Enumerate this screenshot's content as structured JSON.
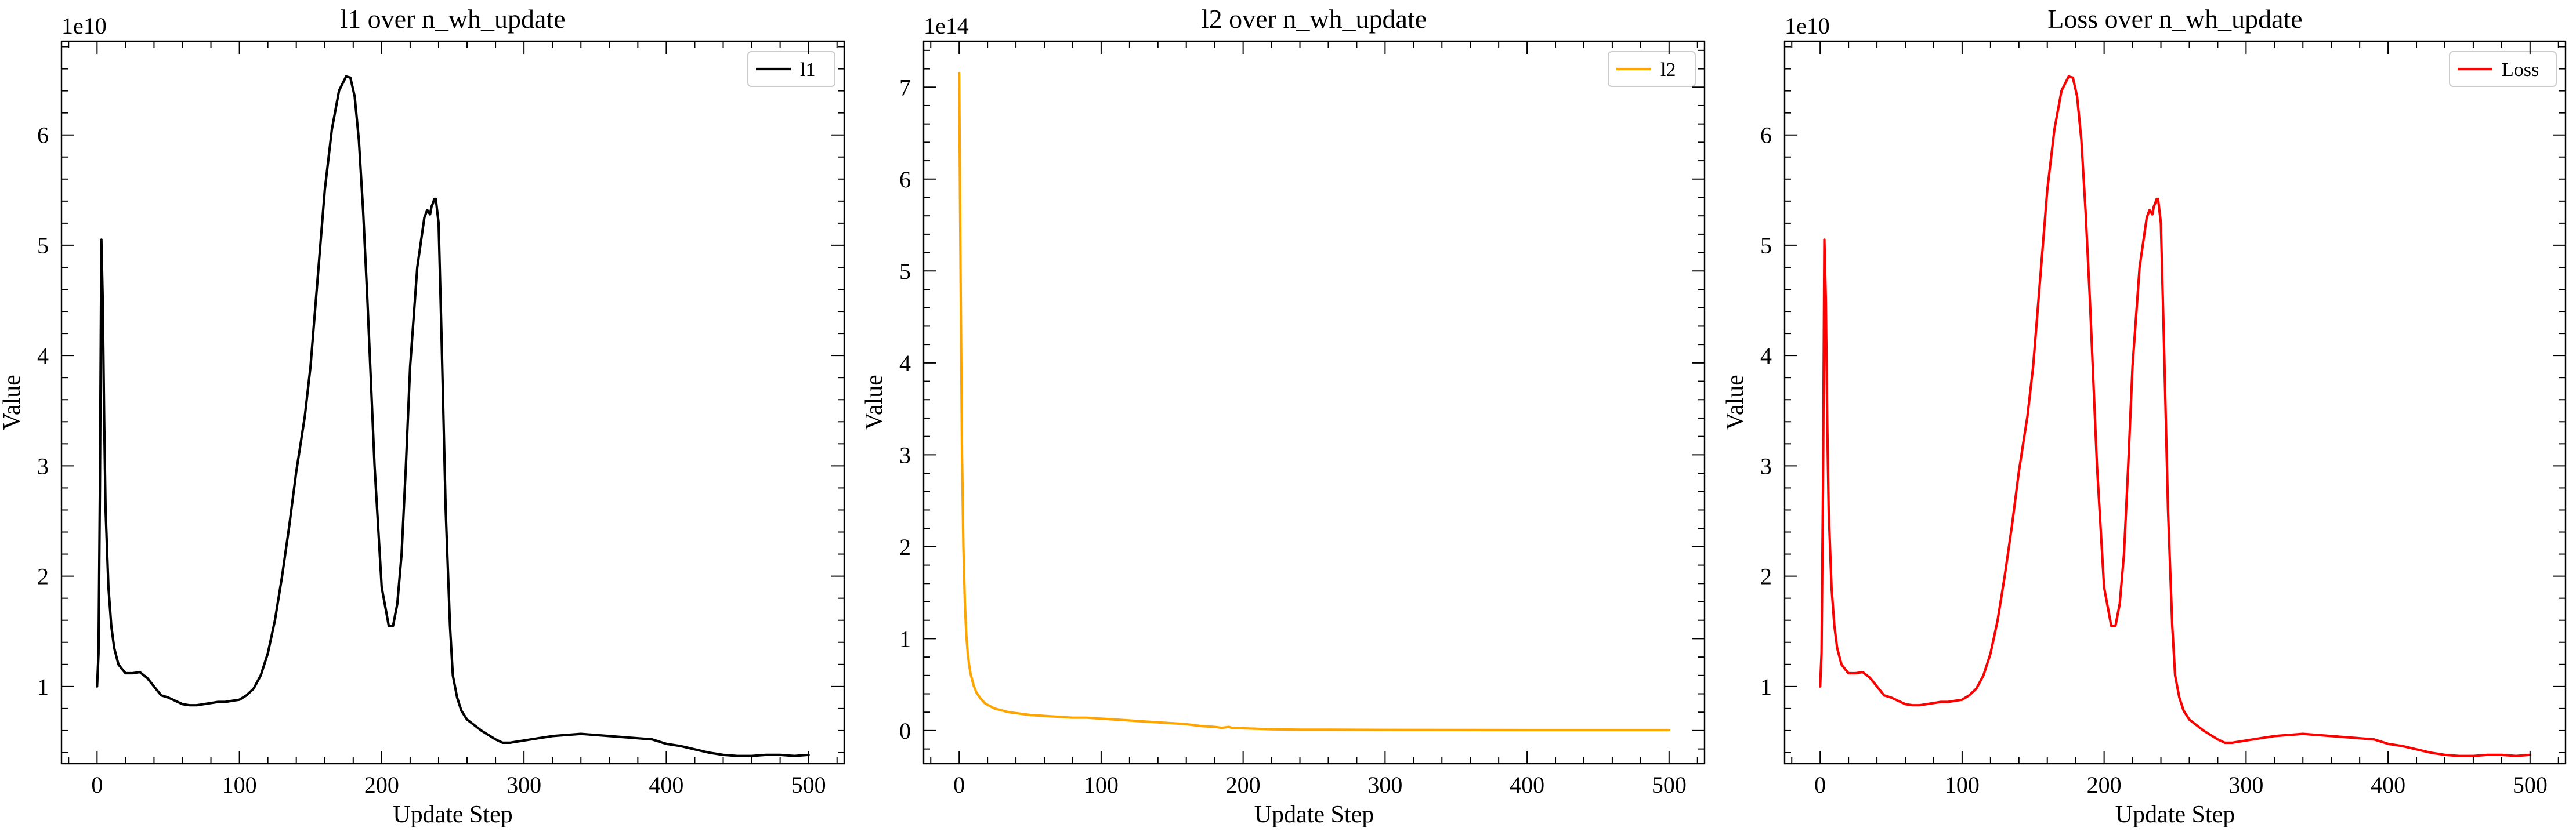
{
  "chart_data": [
    {
      "type": "line",
      "title": "l1 over n_wh_update",
      "xlabel": "Update Step",
      "ylabel": "Value",
      "y_scale_label": "1e10",
      "xlim": [
        -25,
        525
      ],
      "ylim": [
        0.3,
        6.85
      ],
      "x_ticks": [
        0,
        100,
        200,
        300,
        400,
        500
      ],
      "y_ticks": [
        1,
        2,
        3,
        4,
        5,
        6
      ],
      "legend_position": "top-right",
      "series": [
        {
          "name": "l1",
          "color": "#000000",
          "x": [
            0,
            1,
            2,
            3,
            4,
            5,
            6,
            8,
            10,
            12,
            15,
            18,
            20,
            25,
            30,
            35,
            40,
            45,
            50,
            55,
            60,
            65,
            70,
            75,
            80,
            85,
            90,
            95,
            100,
            105,
            110,
            115,
            120,
            125,
            130,
            135,
            140,
            143,
            146,
            150,
            155,
            160,
            165,
            170,
            175,
            178,
            181,
            184,
            187,
            190,
            195,
            200,
            205,
            208,
            211,
            214,
            217,
            220,
            225,
            230,
            232,
            234,
            235,
            236,
            237,
            238,
            240,
            242,
            245,
            248,
            250,
            253,
            256,
            260,
            265,
            270,
            275,
            280,
            285,
            290,
            300,
            310,
            320,
            330,
            340,
            350,
            360,
            370,
            380,
            390,
            400,
            410,
            420,
            430,
            440,
            450,
            460,
            470,
            480,
            490,
            500
          ],
          "values": [
            1.0,
            1.3,
            2.8,
            5.05,
            4.5,
            3.4,
            2.6,
            1.9,
            1.55,
            1.35,
            1.2,
            1.15,
            1.12,
            1.12,
            1.13,
            1.08,
            1.0,
            0.92,
            0.9,
            0.87,
            0.84,
            0.83,
            0.83,
            0.84,
            0.85,
            0.86,
            0.86,
            0.87,
            0.88,
            0.92,
            0.98,
            1.1,
            1.3,
            1.6,
            2.0,
            2.45,
            2.95,
            3.2,
            3.45,
            3.9,
            4.7,
            5.5,
            6.05,
            6.4,
            6.53,
            6.52,
            6.35,
            5.95,
            5.3,
            4.5,
            3.0,
            1.9,
            1.55,
            1.55,
            1.75,
            2.2,
            3.0,
            3.9,
            4.8,
            5.25,
            5.32,
            5.28,
            5.35,
            5.38,
            5.42,
            5.42,
            5.2,
            4.2,
            2.6,
            1.55,
            1.1,
            0.9,
            0.78,
            0.7,
            0.65,
            0.6,
            0.56,
            0.52,
            0.49,
            0.49,
            0.51,
            0.53,
            0.55,
            0.56,
            0.57,
            0.56,
            0.55,
            0.54,
            0.53,
            0.52,
            0.48,
            0.46,
            0.43,
            0.4,
            0.38,
            0.37,
            0.37,
            0.38,
            0.38,
            0.37,
            0.38
          ]
        }
      ]
    },
    {
      "type": "line",
      "title": "l2 over n_wh_update",
      "xlabel": "Update Step",
      "ylabel": "Value",
      "y_scale_label": "1e14",
      "xlim": [
        -25,
        525
      ],
      "ylim": [
        -0.36,
        7.5
      ],
      "x_ticks": [
        0,
        100,
        200,
        300,
        400,
        500
      ],
      "y_ticks": [
        0,
        1,
        2,
        3,
        4,
        5,
        6,
        7
      ],
      "legend_position": "top-right",
      "series": [
        {
          "name": "l2",
          "color": "#ffa500",
          "x": [
            0,
            1,
            2,
            3,
            4,
            5,
            6,
            7,
            8,
            10,
            12,
            15,
            18,
            20,
            25,
            30,
            35,
            40,
            50,
            60,
            70,
            80,
            90,
            100,
            110,
            120,
            130,
            140,
            150,
            160,
            170,
            180,
            185,
            190,
            192,
            195,
            200,
            210,
            220,
            230,
            240,
            260,
            300,
            350,
            400,
            450,
            500
          ],
          "values": [
            7.15,
            5.0,
            3.0,
            2.0,
            1.4,
            1.05,
            0.85,
            0.72,
            0.62,
            0.5,
            0.42,
            0.35,
            0.3,
            0.28,
            0.24,
            0.22,
            0.2,
            0.19,
            0.17,
            0.16,
            0.15,
            0.14,
            0.14,
            0.13,
            0.12,
            0.11,
            0.1,
            0.09,
            0.08,
            0.07,
            0.05,
            0.04,
            0.03,
            0.04,
            0.03,
            0.03,
            0.025,
            0.02,
            0.015,
            0.012,
            0.01,
            0.01,
            0.008,
            0.007,
            0.006,
            0.006,
            0.006
          ]
        }
      ]
    },
    {
      "type": "line",
      "title": "Loss over n_wh_update",
      "xlabel": "Update Step",
      "ylabel": "Value",
      "y_scale_label": "1e10",
      "xlim": [
        -25,
        525
      ],
      "ylim": [
        0.3,
        6.85
      ],
      "x_ticks": [
        0,
        100,
        200,
        300,
        400,
        500
      ],
      "y_ticks": [
        1,
        2,
        3,
        4,
        5,
        6
      ],
      "legend_position": "top-right",
      "series": [
        {
          "name": "Loss",
          "color": "#ff0000",
          "x": [
            0,
            1,
            2,
            3,
            4,
            5,
            6,
            8,
            10,
            12,
            15,
            18,
            20,
            25,
            30,
            35,
            40,
            45,
            50,
            55,
            60,
            65,
            70,
            75,
            80,
            85,
            90,
            95,
            100,
            105,
            110,
            115,
            120,
            125,
            130,
            135,
            140,
            143,
            146,
            150,
            155,
            160,
            165,
            170,
            175,
            178,
            181,
            184,
            187,
            190,
            195,
            200,
            205,
            208,
            211,
            214,
            217,
            220,
            225,
            230,
            232,
            234,
            235,
            236,
            237,
            238,
            240,
            242,
            245,
            248,
            250,
            253,
            256,
            260,
            265,
            270,
            275,
            280,
            285,
            290,
            300,
            310,
            320,
            330,
            340,
            350,
            360,
            370,
            380,
            390,
            400,
            410,
            420,
            430,
            440,
            450,
            460,
            470,
            480,
            490,
            500
          ],
          "values": [
            1.0,
            1.3,
            2.8,
            5.05,
            4.5,
            3.4,
            2.6,
            1.9,
            1.55,
            1.35,
            1.2,
            1.15,
            1.12,
            1.12,
            1.13,
            1.08,
            1.0,
            0.92,
            0.9,
            0.87,
            0.84,
            0.83,
            0.83,
            0.84,
            0.85,
            0.86,
            0.86,
            0.87,
            0.88,
            0.92,
            0.98,
            1.1,
            1.3,
            1.6,
            2.0,
            2.45,
            2.95,
            3.2,
            3.45,
            3.9,
            4.7,
            5.5,
            6.05,
            6.4,
            6.53,
            6.52,
            6.35,
            5.95,
            5.3,
            4.5,
            3.0,
            1.9,
            1.55,
            1.55,
            1.75,
            2.2,
            3.0,
            3.9,
            4.8,
            5.25,
            5.32,
            5.28,
            5.35,
            5.38,
            5.42,
            5.42,
            5.2,
            4.2,
            2.6,
            1.55,
            1.1,
            0.9,
            0.78,
            0.7,
            0.65,
            0.6,
            0.56,
            0.52,
            0.49,
            0.49,
            0.51,
            0.53,
            0.55,
            0.56,
            0.57,
            0.56,
            0.55,
            0.54,
            0.53,
            0.52,
            0.48,
            0.46,
            0.43,
            0.4,
            0.38,
            0.37,
            0.37,
            0.38,
            0.38,
            0.37,
            0.38
          ]
        }
      ]
    }
  ]
}
